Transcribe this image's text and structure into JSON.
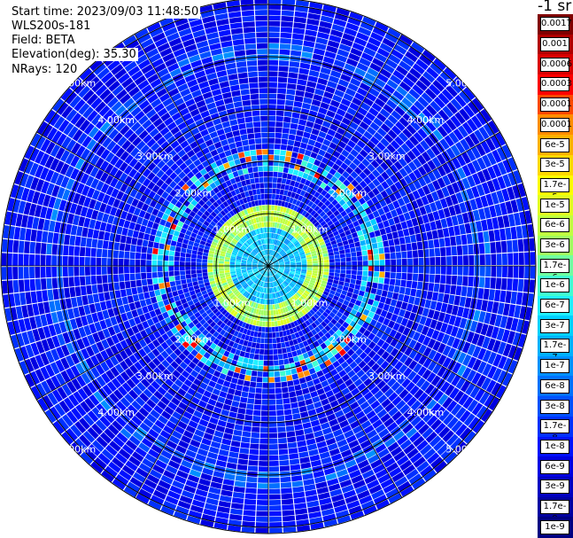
{
  "header": {
    "start_time": "Start time: 2023/09/03 11:48:50",
    "instrument": "WLS200s-181",
    "field": "Field: BETA",
    "elevation": "Elevation(deg): 35.30",
    "nrays": "NRays: 120"
  },
  "colorbar": {
    "unit": "-1 sr",
    "labels": [
      "0.0017",
      "0.001",
      "0.0006",
      "0.0003",
      "0.00017",
      "0.0001",
      "6e-5",
      "3e-5",
      "1.7e-5",
      "1e-5",
      "6e-6",
      "3e-6",
      "1.7e-6",
      "1e-6",
      "6e-7",
      "3e-7",
      "1.7e-7",
      "1e-7",
      "6e-8",
      "3e-8",
      "1.7e-8",
      "1e-8",
      "6e-9",
      "3e-9",
      "1.7e-9",
      "1e-9"
    ],
    "colors": [
      "#800000",
      "#b00000",
      "#d80000",
      "#ff0000",
      "#ff4800",
      "#ff8c00",
      "#ffb000",
      "#ffd800",
      "#ffff00",
      "#e0ff20",
      "#c0ff40",
      "#a0ff60",
      "#70ffa0",
      "#40ffd0",
      "#20f0ff",
      "#00d0ff",
      "#00b0ff",
      "#0090ff",
      "#0070ff",
      "#0050ff",
      "#0030ff",
      "#0010ff",
      "#0000e0",
      "#0000c0",
      "#0000a0",
      "#000080"
    ]
  },
  "chart_data": {
    "type": "heatmap",
    "projection": "polar PPI",
    "nrays": 120,
    "range_rings_km": [
      "1.00km",
      "2.00km",
      "3.00km",
      "4.00km",
      "5.00km"
    ],
    "dominant_level": "1e-8",
    "features": [
      {
        "name": "inner ring",
        "range_km": 0.95,
        "level": "1e-5"
      },
      {
        "name": "intermediate ring",
        "range_km": 2.05,
        "level": "1e-6"
      },
      {
        "name": "aerosol layer",
        "range_km": 4.1,
        "level": "1e-7"
      },
      {
        "name": "strong returns",
        "range_km": 2.1,
        "level": "0.0003"
      }
    ]
  }
}
